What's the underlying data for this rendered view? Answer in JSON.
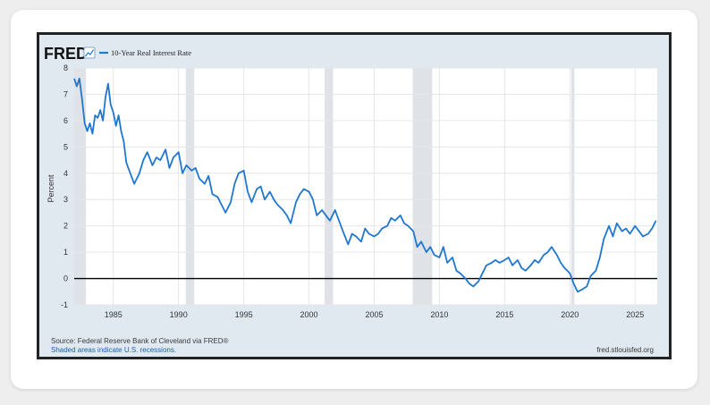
{
  "header": {
    "brand": "FRED"
  },
  "footer": {
    "source": "Source: Federal Reserve Bank of Cleveland via FRED®",
    "note": "Shaded areas indicate U.S. recessions.",
    "site": "fred.stlouisfed.org"
  },
  "colors": {
    "line": "#1f77d0",
    "plot_bg": "#ffffff",
    "frame_bg": "#e1e9f0",
    "recession": "#dfe3e8",
    "brand_text": "#111111",
    "footer_link": "#1a5fb4"
  },
  "chart_data": {
    "type": "line",
    "ylabel": "Percent",
    "xlim": [
      1982.0,
      2026.7
    ],
    "ylim": [
      -1,
      8
    ],
    "yticks": [
      -1,
      0,
      1,
      2,
      3,
      4,
      5,
      6,
      7,
      8
    ],
    "xticks": [
      1985,
      1990,
      1995,
      2000,
      2005,
      2010,
      2015,
      2020,
      2025
    ],
    "grid": true,
    "legend": "top-left",
    "zero_line": true,
    "recessions": [
      [
        1981.6,
        1982.9
      ],
      [
        1990.55,
        1991.2
      ],
      [
        2001.2,
        2001.85
      ],
      [
        2007.95,
        2009.45
      ],
      [
        2020.1,
        2020.35
      ]
    ],
    "series": [
      {
        "name": "10-Year Real Interest Rate",
        "x": [
          1982.0,
          1982.2,
          1982.4,
          1982.6,
          1982.8,
          1983.0,
          1983.2,
          1983.4,
          1983.6,
          1983.8,
          1984.0,
          1984.2,
          1984.4,
          1984.6,
          1984.8,
          1985.0,
          1985.2,
          1985.4,
          1985.6,
          1985.8,
          1986.0,
          1986.3,
          1986.6,
          1987.0,
          1987.3,
          1987.6,
          1988.0,
          1988.3,
          1988.6,
          1989.0,
          1989.3,
          1989.6,
          1990.0,
          1990.3,
          1990.6,
          1991.0,
          1991.3,
          1991.6,
          1992.0,
          1992.3,
          1992.6,
          1993.0,
          1993.3,
          1993.6,
          1994.0,
          1994.3,
          1994.6,
          1995.0,
          1995.3,
          1995.6,
          1996.0,
          1996.3,
          1996.6,
          1997.0,
          1997.3,
          1997.6,
          1998.0,
          1998.3,
          1998.6,
          1999.0,
          1999.3,
          1999.6,
          2000.0,
          2000.3,
          2000.6,
          2001.0,
          2001.3,
          2001.6,
          2002.0,
          2002.3,
          2002.6,
          2003.0,
          2003.3,
          2003.6,
          2004.0,
          2004.3,
          2004.6,
          2005.0,
          2005.3,
          2005.6,
          2006.0,
          2006.3,
          2006.6,
          2007.0,
          2007.3,
          2007.6,
          2008.0,
          2008.3,
          2008.6,
          2009.0,
          2009.3,
          2009.6,
          2010.0,
          2010.3,
          2010.6,
          2011.0,
          2011.3,
          2011.6,
          2012.0,
          2012.3,
          2012.6,
          2013.0,
          2013.3,
          2013.6,
          2014.0,
          2014.3,
          2014.6,
          2015.0,
          2015.3,
          2015.6,
          2016.0,
          2016.3,
          2016.6,
          2017.0,
          2017.3,
          2017.6,
          2018.0,
          2018.3,
          2018.6,
          2019.0,
          2019.3,
          2019.6,
          2020.0,
          2020.3,
          2020.6,
          2021.0,
          2021.3,
          2021.6,
          2022.0,
          2022.3,
          2022.6,
          2023.0,
          2023.3,
          2023.6,
          2024.0,
          2024.3,
          2024.6,
          2025.0,
          2025.3,
          2025.6,
          2026.0,
          2026.3,
          2026.6
        ],
        "values": [
          7.6,
          7.3,
          7.6,
          6.8,
          5.9,
          5.6,
          5.9,
          5.5,
          6.2,
          6.1,
          6.4,
          6.0,
          6.9,
          7.4,
          6.6,
          6.3,
          5.8,
          6.2,
          5.6,
          5.2,
          4.4,
          4.0,
          3.6,
          4.0,
          4.5,
          4.8,
          4.3,
          4.6,
          4.5,
          4.9,
          4.2,
          4.6,
          4.8,
          4.0,
          4.3,
          4.1,
          4.2,
          3.8,
          3.6,
          3.9,
          3.2,
          3.1,
          2.8,
          2.5,
          2.9,
          3.6,
          4.0,
          4.1,
          3.3,
          2.9,
          3.4,
          3.5,
          3.0,
          3.3,
          3.0,
          2.8,
          2.6,
          2.4,
          2.1,
          2.9,
          3.2,
          3.4,
          3.3,
          3.0,
          2.4,
          2.6,
          2.4,
          2.2,
          2.6,
          2.2,
          1.8,
          1.3,
          1.7,
          1.6,
          1.4,
          1.9,
          1.7,
          1.6,
          1.7,
          1.9,
          2.0,
          2.3,
          2.2,
          2.4,
          2.1,
          2.0,
          1.8,
          1.2,
          1.4,
          1.0,
          1.2,
          0.9,
          0.8,
          1.2,
          0.6,
          0.8,
          0.3,
          0.2,
          0.0,
          -0.2,
          -0.3,
          -0.1,
          0.2,
          0.5,
          0.6,
          0.7,
          0.6,
          0.7,
          0.8,
          0.5,
          0.7,
          0.4,
          0.3,
          0.5,
          0.7,
          0.6,
          0.9,
          1.0,
          1.2,
          0.9,
          0.6,
          0.4,
          0.2,
          -0.2,
          -0.5,
          -0.4,
          -0.3,
          0.1,
          0.3,
          0.8,
          1.5,
          2.0,
          1.6,
          2.1,
          1.8,
          1.9,
          1.7,
          2.0,
          1.8,
          1.6,
          1.7,
          1.9,
          2.2
        ]
      }
    ]
  }
}
